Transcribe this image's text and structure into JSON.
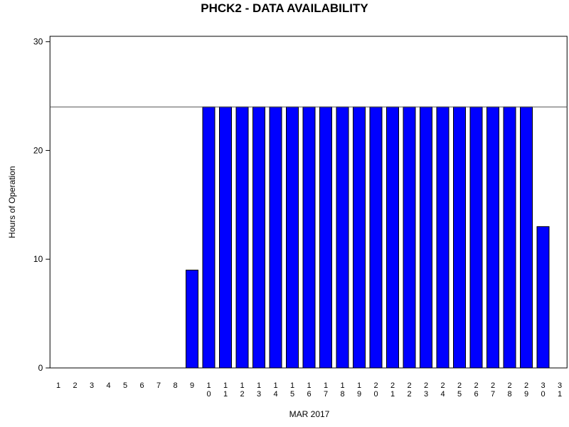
{
  "chart_data": {
    "type": "bar",
    "title": "PHCK2 - DATA AVAILABILITY",
    "x_label": "MAR 2017",
    "y_label": "Hours of Operation",
    "categories": [
      "1",
      "2",
      "3",
      "4",
      "5",
      "6",
      "7",
      "8",
      "9",
      "10",
      "11",
      "12",
      "13",
      "14",
      "15",
      "16",
      "17",
      "18",
      "19",
      "20",
      "21",
      "22",
      "23",
      "24",
      "25",
      "26",
      "27",
      "28",
      "29",
      "30",
      "31"
    ],
    "values": [
      0,
      0,
      0,
      0,
      0,
      0,
      0,
      0,
      9,
      24,
      24,
      24,
      24,
      24,
      24,
      24,
      24,
      24,
      24,
      24,
      24,
      24,
      24,
      24,
      24,
      24,
      24,
      24,
      24,
      13,
      0
    ],
    "color": "#0000ff",
    "reference_line": 24,
    "ylim": [
      0,
      30.5
    ],
    "yticks": [
      0,
      10,
      20,
      30
    ]
  }
}
